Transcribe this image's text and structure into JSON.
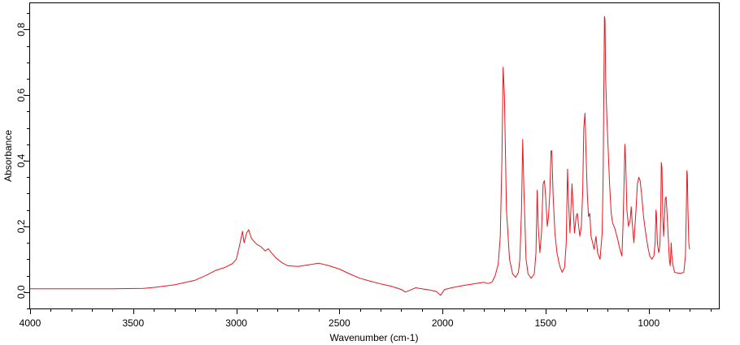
{
  "chart_data": {
    "type": "line",
    "title": "",
    "xlabel": "Wavenumber (cm-1)",
    "ylabel": "Absorbance",
    "xlim": [
      4000,
      660
    ],
    "ylim": [
      -0.05,
      0.88
    ],
    "x_ticks": [
      4000,
      3500,
      3000,
      2500,
      2000,
      1500,
      1000
    ],
    "x_tick_labels": [
      "4000",
      "3500",
      "3000",
      "2500",
      "2000",
      "1500",
      "1000"
    ],
    "y_ticks": [
      0.0,
      0.2,
      0.4,
      0.6,
      0.8
    ],
    "y_tick_labels": [
      "0,0",
      "0,2",
      "0,4",
      "0,6",
      "0,8"
    ],
    "grid": false,
    "series": [
      {
        "color": "#e8161e",
        "points": [
          [
            4000,
            0.01
          ],
          [
            3800,
            0.01
          ],
          [
            3600,
            0.01
          ],
          [
            3450,
            0.011
          ],
          [
            3400,
            0.014
          ],
          [
            3300,
            0.022
          ],
          [
            3200,
            0.036
          ],
          [
            3150,
            0.05
          ],
          [
            3100,
            0.066
          ],
          [
            3060,
            0.074
          ],
          [
            3020,
            0.086
          ],
          [
            3000,
            0.1
          ],
          [
            2985,
            0.14
          ],
          [
            2970,
            0.185
          ],
          [
            2962,
            0.15
          ],
          [
            2950,
            0.18
          ],
          [
            2940,
            0.19
          ],
          [
            2928,
            0.165
          ],
          [
            2915,
            0.155
          ],
          [
            2900,
            0.145
          ],
          [
            2880,
            0.138
          ],
          [
            2860,
            0.125
          ],
          [
            2845,
            0.132
          ],
          [
            2830,
            0.12
          ],
          [
            2810,
            0.105
          ],
          [
            2780,
            0.09
          ],
          [
            2750,
            0.08
          ],
          [
            2700,
            0.078
          ],
          [
            2650,
            0.083
          ],
          [
            2600,
            0.088
          ],
          [
            2550,
            0.08
          ],
          [
            2500,
            0.07
          ],
          [
            2450,
            0.055
          ],
          [
            2400,
            0.042
          ],
          [
            2350,
            0.033
          ],
          [
            2300,
            0.025
          ],
          [
            2250,
            0.018
          ],
          [
            2200,
            0.008
          ],
          [
            2180,
            0.0
          ],
          [
            2160,
            0.005
          ],
          [
            2130,
            0.013
          ],
          [
            2100,
            0.01
          ],
          [
            2060,
            0.006
          ],
          [
            2030,
            0.002
          ],
          [
            2010,
            -0.01
          ],
          [
            1990,
            0.008
          ],
          [
            1950,
            0.014
          ],
          [
            1900,
            0.02
          ],
          [
            1850,
            0.025
          ],
          [
            1800,
            0.03
          ],
          [
            1780,
            0.026
          ],
          [
            1760,
            0.03
          ],
          [
            1745,
            0.05
          ],
          [
            1730,
            0.085
          ],
          [
            1720,
            0.17
          ],
          [
            1712,
            0.4
          ],
          [
            1706,
            0.685
          ],
          [
            1700,
            0.6
          ],
          [
            1690,
            0.25
          ],
          [
            1675,
            0.1
          ],
          [
            1660,
            0.055
          ],
          [
            1645,
            0.045
          ],
          [
            1632,
            0.06
          ],
          [
            1625,
            0.1
          ],
          [
            1617,
            0.25
          ],
          [
            1611,
            0.465
          ],
          [
            1605,
            0.3
          ],
          [
            1595,
            0.1
          ],
          [
            1585,
            0.055
          ],
          [
            1570,
            0.042
          ],
          [
            1555,
            0.055
          ],
          [
            1547,
            0.12
          ],
          [
            1541,
            0.31
          ],
          [
            1536,
            0.2
          ],
          [
            1528,
            0.12
          ],
          [
            1520,
            0.18
          ],
          [
            1512,
            0.33
          ],
          [
            1506,
            0.34
          ],
          [
            1500,
            0.29
          ],
          [
            1492,
            0.2
          ],
          [
            1486,
            0.23
          ],
          [
            1480,
            0.3
          ],
          [
            1474,
            0.43
          ],
          [
            1470,
            0.43
          ],
          [
            1464,
            0.3
          ],
          [
            1455,
            0.18
          ],
          [
            1445,
            0.12
          ],
          [
            1432,
            0.08
          ],
          [
            1420,
            0.06
          ],
          [
            1408,
            0.075
          ],
          [
            1400,
            0.15
          ],
          [
            1394,
            0.375
          ],
          [
            1389,
            0.28
          ],
          [
            1382,
            0.18
          ],
          [
            1377,
            0.26
          ],
          [
            1372,
            0.33
          ],
          [
            1366,
            0.25
          ],
          [
            1360,
            0.18
          ],
          [
            1352,
            0.23
          ],
          [
            1346,
            0.24
          ],
          [
            1340,
            0.2
          ],
          [
            1334,
            0.17
          ],
          [
            1327,
            0.2
          ],
          [
            1320,
            0.31
          ],
          [
            1315,
            0.5
          ],
          [
            1309,
            0.545
          ],
          [
            1304,
            0.42
          ],
          [
            1298,
            0.3
          ],
          [
            1292,
            0.23
          ],
          [
            1286,
            0.24
          ],
          [
            1280,
            0.17
          ],
          [
            1272,
            0.15
          ],
          [
            1265,
            0.13
          ],
          [
            1256,
            0.17
          ],
          [
            1248,
            0.12
          ],
          [
            1236,
            0.1
          ],
          [
            1226,
            0.18
          ],
          [
            1221,
            0.35
          ],
          [
            1218,
            0.6
          ],
          [
            1215,
            0.84
          ],
          [
            1212,
            0.83
          ],
          [
            1209,
            0.65
          ],
          [
            1203,
            0.53
          ],
          [
            1197,
            0.44
          ],
          [
            1190,
            0.33
          ],
          [
            1182,
            0.24
          ],
          [
            1175,
            0.21
          ],
          [
            1165,
            0.195
          ],
          [
            1150,
            0.16
          ],
          [
            1140,
            0.13
          ],
          [
            1130,
            0.11
          ],
          [
            1125,
            0.2
          ],
          [
            1120,
            0.32
          ],
          [
            1116,
            0.45
          ],
          [
            1112,
            0.4
          ],
          [
            1106,
            0.25
          ],
          [
            1098,
            0.2
          ],
          [
            1090,
            0.22
          ],
          [
            1085,
            0.26
          ],
          [
            1080,
            0.21
          ],
          [
            1072,
            0.15
          ],
          [
            1062,
            0.25
          ],
          [
            1055,
            0.33
          ],
          [
            1048,
            0.35
          ],
          [
            1042,
            0.34
          ],
          [
            1035,
            0.3
          ],
          [
            1025,
            0.23
          ],
          [
            1015,
            0.18
          ],
          [
            1005,
            0.14
          ],
          [
            995,
            0.11
          ],
          [
            985,
            0.1
          ],
          [
            975,
            0.11
          ],
          [
            969,
            0.15
          ],
          [
            965,
            0.25
          ],
          [
            963,
            0.24
          ],
          [
            958,
            0.15
          ],
          [
            952,
            0.12
          ],
          [
            946,
            0.14
          ],
          [
            942,
            0.23
          ],
          [
            939,
            0.395
          ],
          [
            936,
            0.38
          ],
          [
            932,
            0.24
          ],
          [
            928,
            0.17
          ],
          [
            924,
            0.22
          ],
          [
            920,
            0.285
          ],
          [
            916,
            0.29
          ],
          [
            911,
            0.24
          ],
          [
            905,
            0.16
          ],
          [
            900,
            0.1
          ],
          [
            896,
            0.08
          ],
          [
            891,
            0.15
          ],
          [
            888,
            0.11
          ],
          [
            882,
            0.08
          ],
          [
            875,
            0.06
          ],
          [
            860,
            0.058
          ],
          [
            845,
            0.057
          ],
          [
            830,
            0.06
          ],
          [
            822,
            0.11
          ],
          [
            818,
            0.24
          ],
          [
            815,
            0.37
          ],
          [
            813,
            0.36
          ],
          [
            810,
            0.25
          ],
          [
            806,
            0.15
          ],
          [
            802,
            0.13
          ]
        ]
      }
    ]
  }
}
